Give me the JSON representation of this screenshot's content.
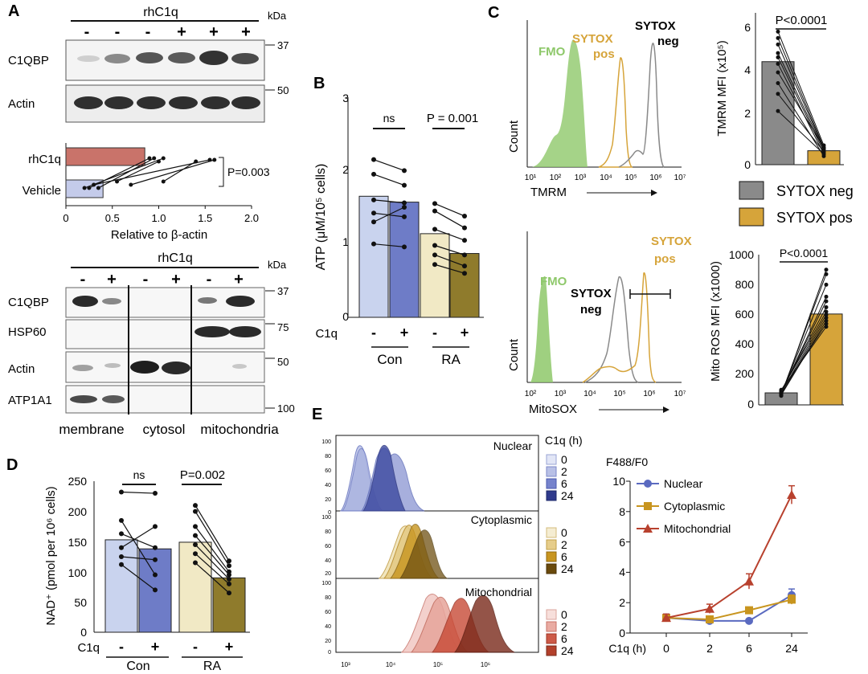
{
  "colors": {
    "con_vehicle": "#c9d3ee",
    "con_c1q": "#6e7cc7",
    "ra_vehicle": "#f1e9c5",
    "ra_c1q": "#8f7b2c",
    "rhc1q_bar": "#c9736a",
    "vehicle_bar": "#c4cbea",
    "sytox_neg": "#8a8a8a",
    "sytox_pos": "#d6a43a",
    "fmo": "#8ec86a",
    "nuclear": "#5a6ac0",
    "cytoplasmic": "#c8951f",
    "mitochondrial": "#b8412e"
  },
  "panelA": {
    "label": "A",
    "header": "rhC1q",
    "kda": "kDa",
    "signs": [
      "-",
      "-",
      "-",
      "+",
      "+",
      "+"
    ],
    "blots": [
      {
        "label": "C1QBP",
        "mw": "37"
      },
      {
        "label": "Actin",
        "mw": "50"
      }
    ],
    "quant": {
      "rows": [
        "rhC1q",
        "Vehicle"
      ],
      "pvalue": "P=0.003",
      "xlabel": "Relative to β-actin",
      "ticks": [
        "0",
        "0.5",
        "1.0",
        "1.5",
        "2.0"
      ],
      "bars": [
        0.85,
        0.4
      ]
    },
    "frac_header": "rhC1q",
    "frac_kda": "kDa",
    "frac_signs": [
      "-",
      "+",
      "-",
      "+",
      "-",
      "+"
    ],
    "frac_rows": [
      {
        "label": "C1QBP",
        "mw": "37"
      },
      {
        "label": "HSP60",
        "mw": "75"
      },
      {
        "label": "Actin",
        "mw": "50"
      },
      {
        "label": "ATP1A1",
        "mw": "100"
      }
    ],
    "fractions": [
      "membrane",
      "cytosol",
      "mitochondria"
    ]
  },
  "panelB": {
    "label": "B",
    "ylabel": "ATP (μM/10⁵ cells)",
    "yticks": [
      "0",
      "1",
      "2",
      "3"
    ],
    "ns": "ns",
    "pvalue": "P = 0.001",
    "c1q": "C1q",
    "signs": [
      "-",
      "+",
      "-",
      "+"
    ],
    "groups": [
      "Con",
      "RA"
    ]
  },
  "panelC": {
    "label": "C",
    "count": "Count",
    "top": {
      "fmo": "FMO",
      "pos1": "SYTOX",
      "pos2": "pos",
      "neg1": "SYTOX",
      "neg2": "neg",
      "xaxis": "TMRM",
      "xticks": [
        "10¹",
        "10²",
        "10³",
        "10⁴",
        "10⁵",
        "10⁶",
        "10⁷"
      ]
    },
    "bottom": {
      "fmo": "FMO",
      "pos1": "SYTOX",
      "pos2": "pos",
      "neg1": "SYTOX",
      "neg2": "neg",
      "xaxis": "MitoSOX",
      "xticks": [
        "10²",
        "10³",
        "10⁴",
        "10⁵",
        "10⁶",
        "10⁷"
      ]
    },
    "tmrm_bar": {
      "ylabel": "TMRM MFI (x10⁵)",
      "pvalue": "P<0.0001",
      "yticks": [
        "0",
        "2",
        "4",
        "6"
      ]
    },
    "legend": [
      "SYTOX neg",
      "SYTOX pos"
    ],
    "ros_bar": {
      "ylabel": "Mito ROS MFI (x1000)",
      "pvalue": "P<0.0001",
      "yticks": [
        "0",
        "200",
        "400",
        "600",
        "800",
        "1000"
      ]
    }
  },
  "panelD": {
    "label": "D",
    "ylabel": "NAD⁺ (pmol per 10⁶ cells)",
    "yticks": [
      "0",
      "50",
      "100",
      "150",
      "200",
      "250"
    ],
    "ns": "ns",
    "pvalue": "P=0.002",
    "c1q": "C1q",
    "signs": [
      "-",
      "+",
      "-",
      "+"
    ],
    "groups": [
      "Con",
      "RA"
    ]
  },
  "panelE": {
    "label": "E",
    "legend_title": "C1q (h)",
    "panels": [
      "Nuclear",
      "Cytoplasmic",
      "Mitochondrial"
    ],
    "times": [
      "0",
      "2",
      "6",
      "24"
    ],
    "yticks": [
      "100",
      "80",
      "60",
      "40",
      "20",
      "0"
    ],
    "xticks": [
      "10³",
      "10⁴",
      "10⁵",
      "10⁶"
    ],
    "line": {
      "ylabel": "F488/F0",
      "yticks": [
        "0",
        "2",
        "4",
        "6",
        "8",
        "10"
      ],
      "xlabel": "C1q (h)",
      "xticks": [
        "0",
        "2",
        "6",
        "24"
      ],
      "legend": [
        "Nuclear",
        "Cytoplasmic",
        "Mitochondrial"
      ]
    }
  },
  "chart_data": [
    {
      "type": "bar",
      "panel": "B",
      "categories": [
        "Con -",
        "Con +",
        "RA -",
        "RA +"
      ],
      "values": [
        1.65,
        1.57,
        1.14,
        0.87
      ],
      "ylabel": "ATP (μM/10⁵ cells)",
      "ylim": [
        0,
        3
      ],
      "paired": [
        [
          2.15,
          2.0
        ],
        [
          1.95,
          1.8
        ],
        [
          1.6,
          1.56
        ],
        [
          1.42,
          1.37
        ],
        [
          1.3,
          1.5
        ],
        [
          1.0,
          0.96
        ]
      ],
      "paired_ra": [
        [
          1.55,
          1.38
        ],
        [
          1.45,
          1.22
        ],
        [
          1.2,
          1.05
        ],
        [
          0.98,
          0.85
        ],
        [
          0.85,
          0.7
        ],
        [
          0.72,
          0.6
        ]
      ]
    },
    {
      "type": "bar",
      "panel": "D",
      "categories": [
        "Con -",
        "Con +",
        "RA -",
        "RA +"
      ],
      "values": [
        153,
        138,
        149,
        90
      ],
      "ylabel": "NAD⁺ (pmol per 10⁶ cells)",
      "ylim": [
        0,
        250
      ],
      "paired": [
        [
          232,
          230
        ],
        [
          185,
          95
        ],
        [
          163,
          140
        ],
        [
          140,
          175
        ],
        [
          125,
          120
        ],
        [
          112,
          70
        ]
      ],
      "paired_ra": [
        [
          210,
          118
        ],
        [
          200,
          110
        ],
        [
          175,
          100
        ],
        [
          160,
          95
        ],
        [
          145,
          88
        ],
        [
          130,
          80
        ],
        [
          115,
          65
        ]
      ]
    },
    {
      "type": "bar",
      "panel": "C-TMRM",
      "categories": [
        "SYTOX neg",
        "SYTOX pos"
      ],
      "values": [
        4.8,
        0.65
      ],
      "ylabel": "TMRM MFI (x10⁵)",
      "ylim": [
        0,
        7
      ]
    },
    {
      "type": "bar",
      "panel": "C-ROS",
      "categories": [
        "SYTOX neg",
        "SYTOX pos"
      ],
      "values": [
        80,
        605
      ],
      "ylabel": "Mito ROS MFI (x1000)",
      "ylim": [
        0,
        1000
      ]
    },
    {
      "type": "line",
      "panel": "E",
      "x": [
        "0",
        "2",
        "6",
        "24"
      ],
      "ylabel": "F488/F0",
      "xlabel": "C1q (h)",
      "ylim": [
        0,
        10
      ],
      "series": [
        {
          "name": "Nuclear",
          "values": [
            1.0,
            0.8,
            0.8,
            2.5
          ]
        },
        {
          "name": "Cytoplasmic",
          "values": [
            1.0,
            0.9,
            1.5,
            2.2
          ]
        },
        {
          "name": "Mitochondrial",
          "values": [
            1.0,
            1.6,
            3.4,
            9.1
          ]
        }
      ]
    }
  ]
}
